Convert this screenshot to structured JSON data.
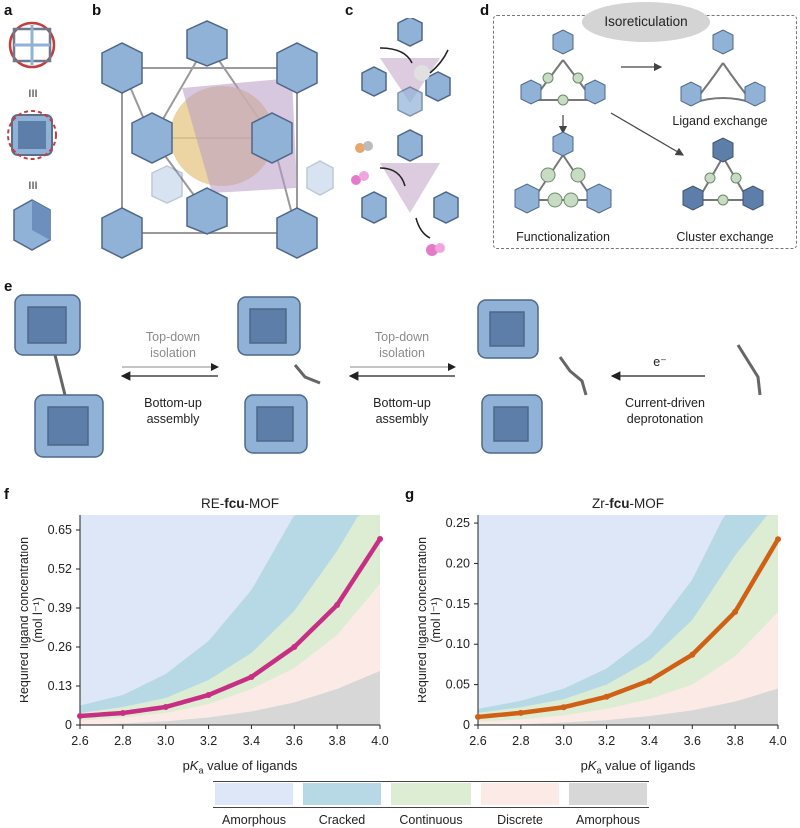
{
  "panel_labels": {
    "a": "a",
    "b": "b",
    "c": "c",
    "d": "d",
    "e": "e",
    "f": "f",
    "g": "g"
  },
  "panel_a": {
    "eq1": "III",
    "eq2": "III"
  },
  "panel_d": {
    "isoreticulation": "Isoreticulation",
    "ligand_exchange": "Ligand exchange",
    "functionalization": "Functionalization",
    "cluster_exchange": "Cluster exchange"
  },
  "panel_e": {
    "step1_top_line1": "Top-down",
    "step1_top_line2": "isolation",
    "step1_bottom_line1": "Bottom-up",
    "step1_bottom_line2": "assembly",
    "step2_top_line1": "Top-down",
    "step2_top_line2": "isolation",
    "step2_bottom_line1": "Bottom-up",
    "step2_bottom_line2": "assembly",
    "electron": "e⁻",
    "step3_line1": "Current-driven",
    "step3_line2": "deprotonation"
  },
  "colors": {
    "amorphous_blue": "#dde7f7",
    "cracked": "#b7d9e6",
    "continuous": "#dcedd3",
    "discrete": "#fbeae6",
    "amorphous_gray": "#d7d7d7",
    "re_curve": "#c82f84",
    "zr_curve": "#cf6016",
    "cluster": "#8fb2d6"
  },
  "legend": [
    "Amorphous",
    "Cracked",
    "Continuous",
    "Discrete",
    "Amorphous"
  ],
  "chart_data": [
    {
      "type": "area",
      "title": "RE-fcu-MOF",
      "title_parts": [
        "RE-",
        "fcu",
        "-MOF"
      ],
      "xlabel_parts": [
        "p",
        "K",
        "a",
        " value of ligands"
      ],
      "ylabel_line1": "Required ligand concentration",
      "ylabel_line2": "(mol l⁻¹)",
      "xlim": [
        2.6,
        4.0
      ],
      "ylim": [
        0,
        0.7
      ],
      "xticks": [
        "2.6",
        "2.8",
        "3.0",
        "3.2",
        "3.4",
        "3.6",
        "3.8",
        "4.0"
      ],
      "yticks": [
        "0",
        "0.13",
        "0.26",
        "0.39",
        "0.52",
        "0.65"
      ],
      "ytick_values": [
        0,
        0.13,
        0.26,
        0.39,
        0.52,
        0.65
      ],
      "curve": {
        "x": [
          2.6,
          2.8,
          3.0,
          3.2,
          3.4,
          3.6,
          3.8,
          4.0
        ],
        "y": [
          0.03,
          0.04,
          0.06,
          0.1,
          0.16,
          0.26,
          0.4,
          0.62
        ]
      },
      "regions": {
        "amorphous_upper_start": {
          "x": [
            2.6,
            2.8,
            3.0,
            3.2,
            3.4,
            3.6
          ],
          "y": [
            0.065,
            0.1,
            0.17,
            0.28,
            0.45,
            0.7
          ]
        },
        "cracked_upper": {
          "x": [
            2.6,
            2.8,
            3.0,
            3.2,
            3.4,
            3.6,
            3.8,
            3.9
          ],
          "y": [
            0.04,
            0.06,
            0.09,
            0.15,
            0.24,
            0.38,
            0.58,
            0.7
          ]
        },
        "discrete_upper": {
          "x": [
            2.6,
            2.8,
            3.0,
            3.2,
            3.4,
            3.6,
            3.8,
            4.0
          ],
          "y": [
            0.015,
            0.025,
            0.04,
            0.07,
            0.12,
            0.19,
            0.3,
            0.47
          ]
        },
        "amorphous_lower": {
          "x": [
            2.6,
            2.8,
            3.0,
            3.2,
            3.4,
            3.6,
            3.8,
            4.0
          ],
          "y": [
            0.0,
            0.005,
            0.012,
            0.025,
            0.045,
            0.075,
            0.12,
            0.18
          ]
        }
      }
    },
    {
      "type": "area",
      "title": "Zr-fcu-MOF",
      "title_parts": [
        "Zr-",
        "fcu",
        "-MOF"
      ],
      "xlabel_parts": [
        "p",
        "K",
        "a",
        " value of ligands"
      ],
      "ylabel_line1": "Required ligand concentration",
      "ylabel_line2": "(mol l⁻¹)",
      "xlim": [
        2.6,
        4.0
      ],
      "ylim": [
        0,
        0.26
      ],
      "xticks": [
        "2.6",
        "2.8",
        "3.0",
        "3.2",
        "3.4",
        "3.6",
        "3.8",
        "4.0"
      ],
      "yticks": [
        "0",
        "0.05",
        "0.10",
        "0.15",
        "0.20",
        "0.25"
      ],
      "ytick_values": [
        0,
        0.05,
        0.1,
        0.15,
        0.2,
        0.25
      ],
      "curve": {
        "x": [
          2.6,
          2.8,
          3.0,
          3.2,
          3.4,
          3.6,
          3.8,
          4.0
        ],
        "y": [
          0.01,
          0.015,
          0.022,
          0.035,
          0.055,
          0.087,
          0.14,
          0.23
        ]
      },
      "regions": {
        "amorphous_upper_start": {
          "x": [
            2.6,
            2.8,
            3.0,
            3.2,
            3.4,
            3.6,
            3.75
          ],
          "y": [
            0.02,
            0.03,
            0.045,
            0.07,
            0.11,
            0.18,
            0.26
          ]
        },
        "cracked_upper": {
          "x": [
            2.6,
            2.8,
            3.0,
            3.2,
            3.4,
            3.6,
            3.8,
            3.95
          ],
          "y": [
            0.015,
            0.022,
            0.032,
            0.05,
            0.08,
            0.13,
            0.21,
            0.26
          ]
        },
        "discrete_upper": {
          "x": [
            2.6,
            2.8,
            3.0,
            3.2,
            3.4,
            3.6,
            3.8,
            4.0
          ],
          "y": [
            0.004,
            0.007,
            0.012,
            0.02,
            0.032,
            0.05,
            0.085,
            0.14
          ]
        },
        "amorphous_lower": {
          "x": [
            2.6,
            2.8,
            3.0,
            3.2,
            3.4,
            3.6,
            3.8,
            4.0
          ],
          "y": [
            0.0,
            0.001,
            0.003,
            0.006,
            0.011,
            0.018,
            0.029,
            0.045
          ]
        }
      }
    }
  ]
}
